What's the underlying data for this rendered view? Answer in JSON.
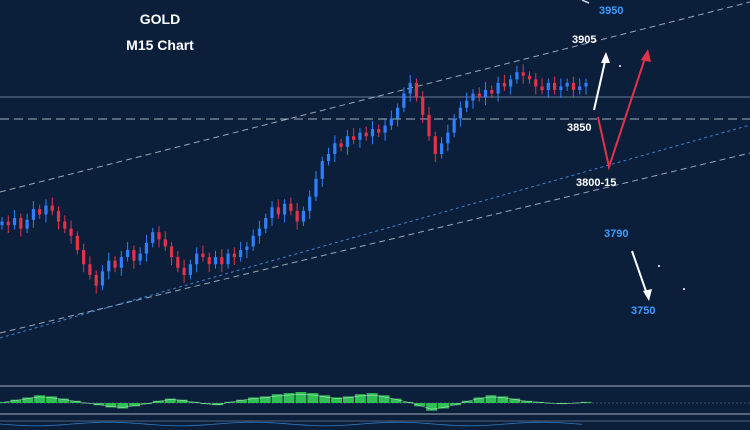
{
  "chart_data": {
    "type": "candlestick",
    "title": "GOLD",
    "subtitle": "M15 Chart",
    "colors": {
      "background": "#0b1f3a",
      "bull": "#2f80ff",
      "bear": "#e2334b",
      "label_white": "#ffffff",
      "label_blue": "#3d9cff",
      "arrow_white": "#ffffff",
      "arrow_red": "#e2334b",
      "oscillator": "#2fbf55"
    },
    "price_closes": [
      3788,
      3786,
      3790,
      3784,
      3789,
      3795,
      3792,
      3797,
      3794,
      3788,
      3784,
      3780,
      3772,
      3764,
      3758,
      3752,
      3760,
      3766,
      3762,
      3768,
      3772,
      3766,
      3770,
      3776,
      3782,
      3778,
      3774,
      3768,
      3762,
      3758,
      3764,
      3770,
      3768,
      3764,
      3768,
      3764,
      3770,
      3768,
      3772,
      3774,
      3780,
      3784,
      3790,
      3796,
      3792,
      3798,
      3794,
      3788,
      3794,
      3802,
      3812,
      3822,
      3826,
      3832,
      3830,
      3836,
      3834,
      3838,
      3836,
      3840,
      3838,
      3842,
      3846,
      3852,
      3860,
      3866,
      3858,
      3848,
      3836,
      3826,
      3832,
      3838,
      3846,
      3852,
      3856,
      3860,
      3858,
      3862,
      3860,
      3866,
      3864,
      3868,
      3872,
      3870,
      3868,
      3864,
      3862,
      3866,
      3862,
      3864,
      3866,
      3862,
      3864,
      3866
    ],
    "labels": {
      "level_3950": "3950",
      "level_3905": "3905",
      "level_3850": "3850",
      "level_3800_15": "3800-15",
      "level_3790": "3790",
      "level_3750": "3750"
    },
    "indicator": {
      "type": "oscillator-histogram",
      "values": [
        0.1,
        0.3,
        0.5,
        0.7,
        0.6,
        0.4,
        0.2,
        0.0,
        -0.2,
        -0.4,
        -0.5,
        -0.3,
        -0.1,
        0.2,
        0.4,
        0.3,
        0.1,
        -0.1,
        -0.2,
        0.1,
        0.3,
        0.5,
        0.6,
        0.8,
        0.9,
        1.0,
        0.9,
        0.7,
        0.5,
        0.6,
        0.8,
        0.9,
        0.7,
        0.4,
        0.1,
        -0.3,
        -0.7,
        -0.5,
        -0.2,
        0.2,
        0.5,
        0.7,
        0.6,
        0.4,
        0.2,
        0.1,
        0.0,
        -0.1,
        0.0,
        0.1
      ]
    }
  }
}
